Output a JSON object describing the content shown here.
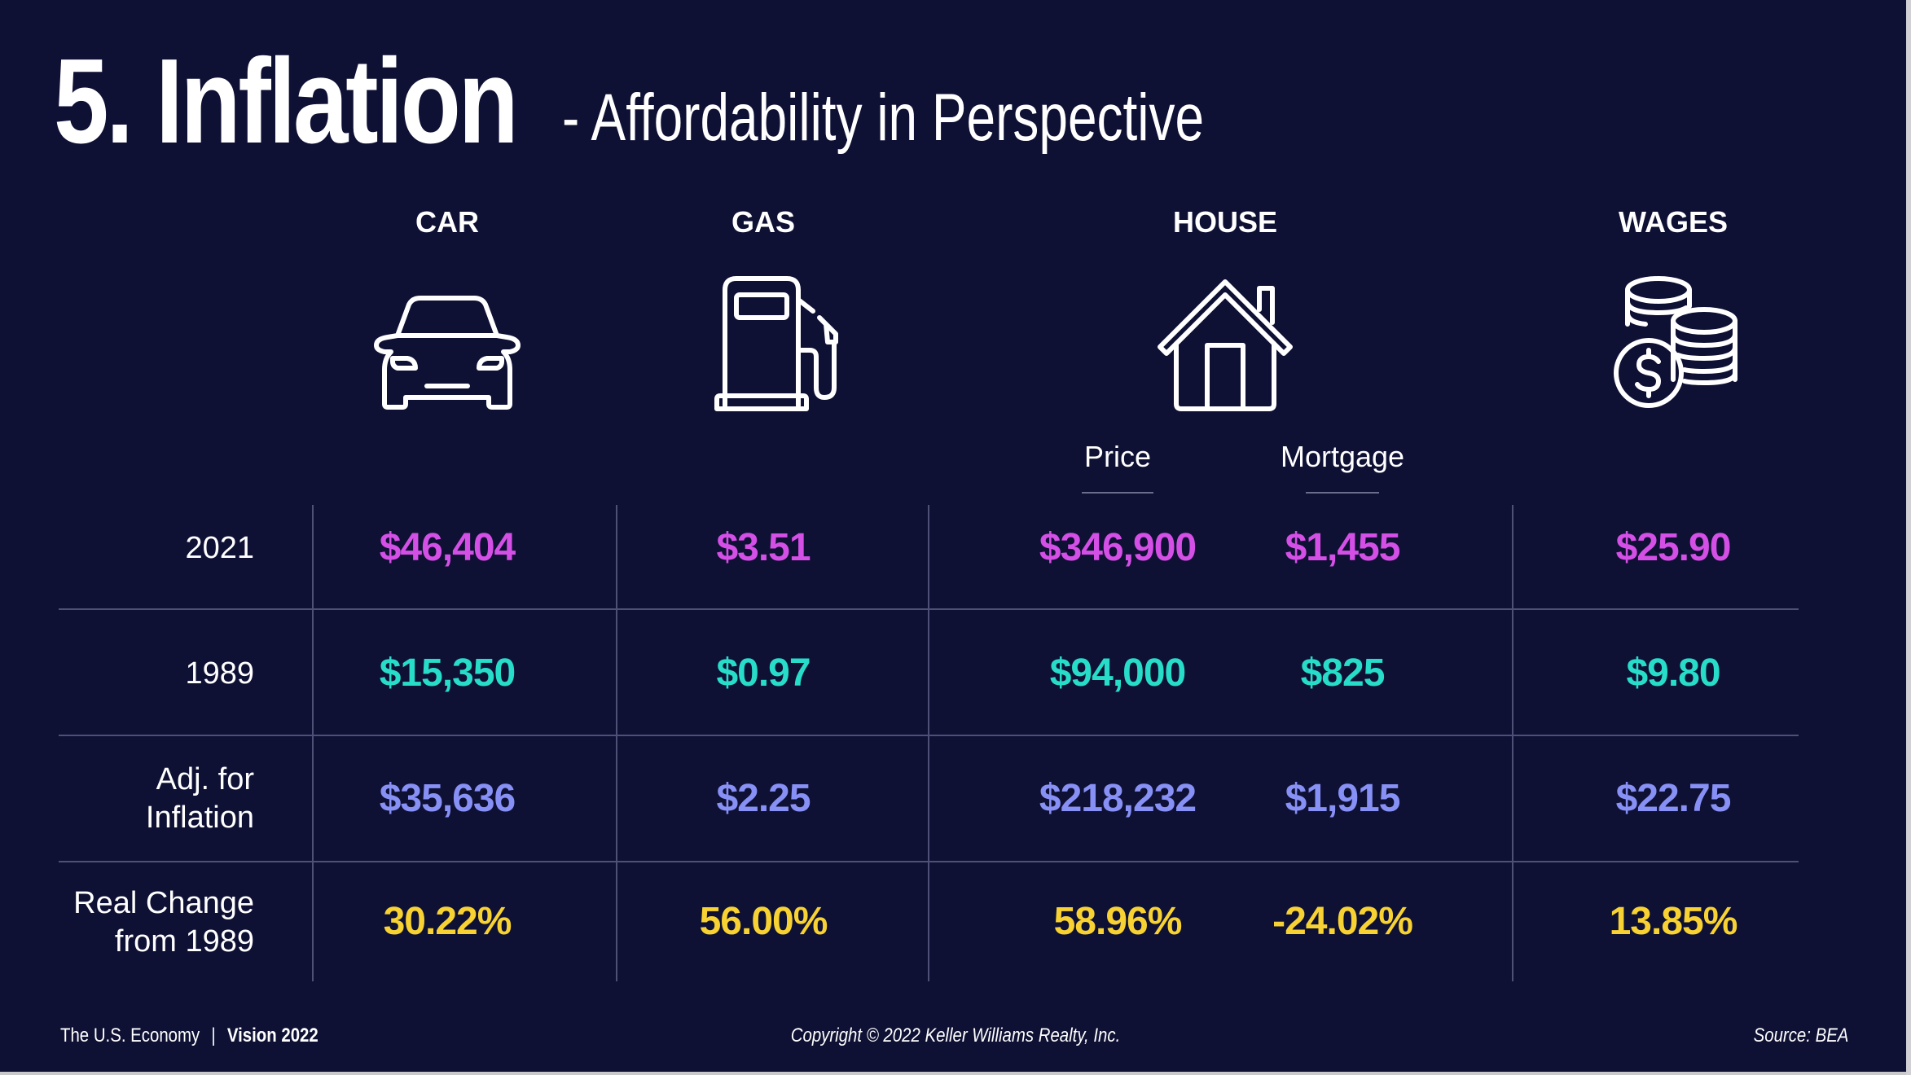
{
  "title": {
    "main": "5. Inflation",
    "sub": "- Affordability in Perspective"
  },
  "columns": {
    "car": "CAR",
    "gas": "GAS",
    "house": "HOUSE",
    "wages": "WAGES",
    "house_price": "Price",
    "house_mortgage": "Mortgage"
  },
  "icons": {
    "car": "car-icon",
    "gas": "gas-pump-icon",
    "house": "house-icon",
    "wages": "coins-icon"
  },
  "rows": {
    "r2021": {
      "label": "2021",
      "car": "$46,404",
      "gas": "$3.51",
      "price": "$346,900",
      "mortgage": "$1,455",
      "wages": "$25.90"
    },
    "r1989": {
      "label": "1989",
      "car": "$15,350",
      "gas": "$0.97",
      "price": "$94,000",
      "mortgage": "$825",
      "wages": "$9.80"
    },
    "adj": {
      "label_line1": "Adj. for",
      "label_line2": "Inflation",
      "car": "$35,636",
      "gas": "$2.25",
      "price": "$218,232",
      "mortgage": "$1,915",
      "wages": "$22.75"
    },
    "change": {
      "label_line1": "Real Change",
      "label_line2": "from 1989",
      "car": "30.22%",
      "gas": "56.00%",
      "price": "58.96%",
      "mortgage": "-24.02%",
      "wages": "13.85%"
    }
  },
  "colors": {
    "background": "#0e1034",
    "row_2021": "#d44fe6",
    "row_1989": "#27ddc9",
    "row_adj": "#8790f4",
    "row_change": "#f7d232"
  },
  "footer": {
    "left_a": "The U.S. Economy",
    "separator": "|",
    "left_b": "Vision 2022",
    "center": "Copyright © 2022 Keller Williams Realty, Inc.",
    "right": "Source: BEA"
  }
}
